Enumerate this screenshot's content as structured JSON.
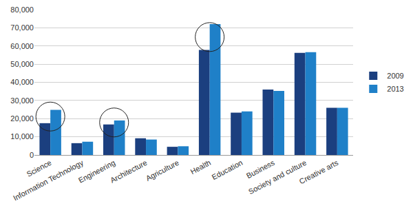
{
  "chart_data": {
    "type": "bar",
    "categories": [
      "Science",
      "Information Technology",
      "Engineering",
      "Architecture",
      "Agriculture",
      "Health",
      "Education",
      "Business",
      "Society and culture",
      "Creative arts"
    ],
    "series": [
      {
        "name": "2009",
        "color": "#1b3f7f",
        "values": [
          17500,
          6500,
          16800,
          9200,
          4500,
          57800,
          23300,
          36000,
          56200,
          26000
        ]
      },
      {
        "name": "2013",
        "color": "#1f80c8",
        "values": [
          24800,
          7300,
          19000,
          8500,
          4800,
          72000,
          24000,
          35300,
          56600,
          26000
        ]
      }
    ],
    "ylim": [
      0,
      80000
    ],
    "yticks": [
      0,
      {
        "value": 10000,
        "label": "10,000"
      },
      {
        "value": 20000,
        "label": "20,000"
      },
      {
        "value": 30000,
        "label": "30,000"
      },
      {
        "value": 40000,
        "label": "40,000"
      },
      {
        "value": 50000,
        "label": "50,000"
      },
      {
        "value": 60000,
        "label": "60,000"
      },
      {
        "value": 70000,
        "label": "70,000"
      },
      {
        "value": 80000,
        "label": "80,000"
      }
    ],
    "grid": true,
    "legend": "right"
  }
}
